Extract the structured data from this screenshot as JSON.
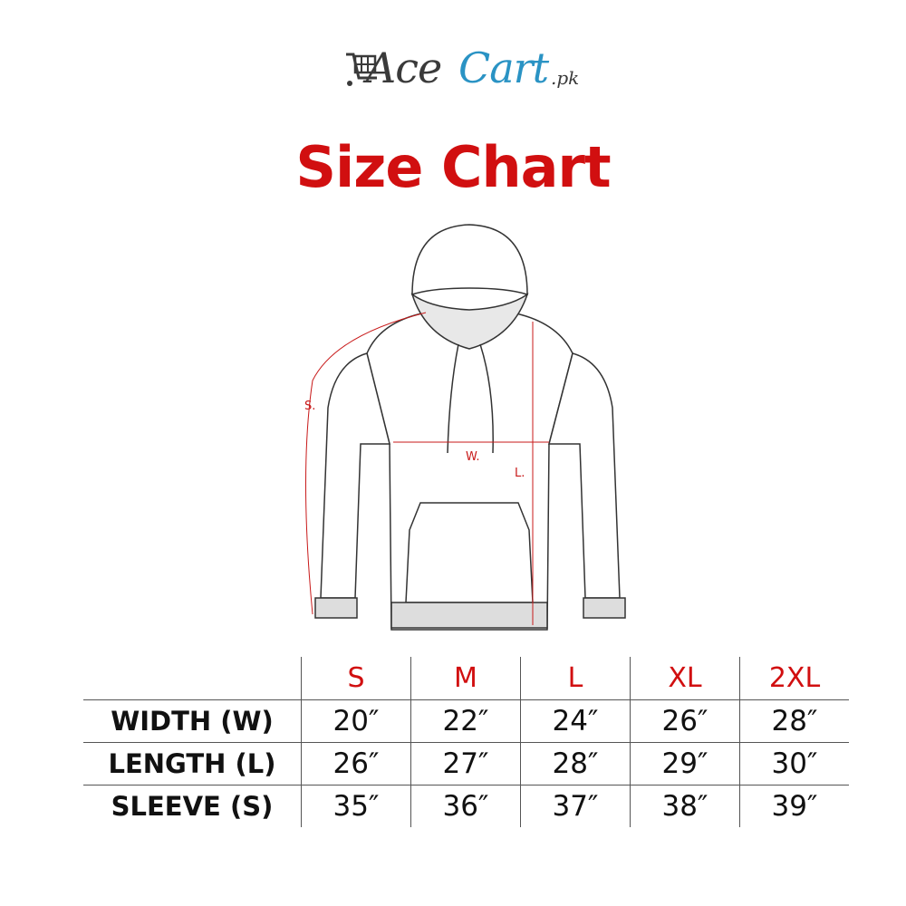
{
  "brand": {
    "name_part1": "Ace",
    "name_part2": "Cart",
    "suffix": ".pk",
    "colors": {
      "dark": "#3a3a3a",
      "blue": "#2a93c4"
    },
    "icon": "shopping-cart-icon"
  },
  "title": "Size Chart",
  "accent_color": "#d10f10",
  "diagram": {
    "sleeve_label": "S.",
    "width_label": "W.",
    "length_label": "L."
  },
  "table": {
    "sizes": [
      "S",
      "M",
      "L",
      "XL",
      "2XL"
    ],
    "rows": [
      {
        "label": "WIDTH (W)",
        "values": [
          "20″",
          "22″",
          "24″",
          "26″",
          "28″"
        ]
      },
      {
        "label": "LENGTH (L)",
        "values": [
          "26″",
          "27″",
          "28″",
          "29″",
          "30″"
        ]
      },
      {
        "label": "SLEEVE (S)",
        "values": [
          "35″",
          "36″",
          "37″",
          "38″",
          "39″"
        ]
      }
    ]
  }
}
